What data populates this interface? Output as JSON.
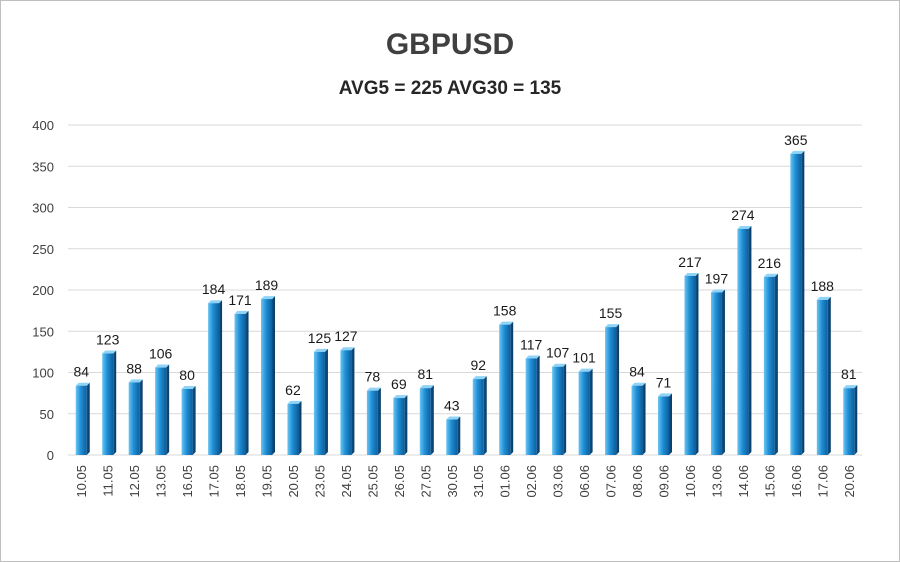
{
  "chart_data": {
    "type": "bar",
    "title": "GBPUSD",
    "subtitle": "AVG5 = 225 AVG30 = 135",
    "xlabel": "",
    "ylabel": "",
    "ylim": [
      0,
      400
    ],
    "yticks": [
      0,
      50,
      100,
      150,
      200,
      250,
      300,
      350,
      400
    ],
    "grid": true,
    "legend": "none",
    "bar_color": "#1f8fd6",
    "categories": [
      "10.05",
      "11.05",
      "12.05",
      "13.05",
      "16.05",
      "17.05",
      "18.05",
      "19.05",
      "20.05",
      "23.05",
      "24.05",
      "25.05",
      "26.05",
      "27.05",
      "30.05",
      "31.05",
      "01.06",
      "02.06",
      "03.06",
      "06.06",
      "07.06",
      "08.06",
      "09.06",
      "10.06",
      "13.06",
      "14.06",
      "15.06",
      "16.06",
      "17.06",
      "20.06"
    ],
    "values": [
      84,
      123,
      88,
      106,
      80,
      184,
      171,
      189,
      62,
      125,
      127,
      78,
      69,
      81,
      43,
      92,
      158,
      117,
      107,
      101,
      155,
      84,
      71,
      217,
      197,
      274,
      216,
      365,
      188,
      81
    ]
  }
}
